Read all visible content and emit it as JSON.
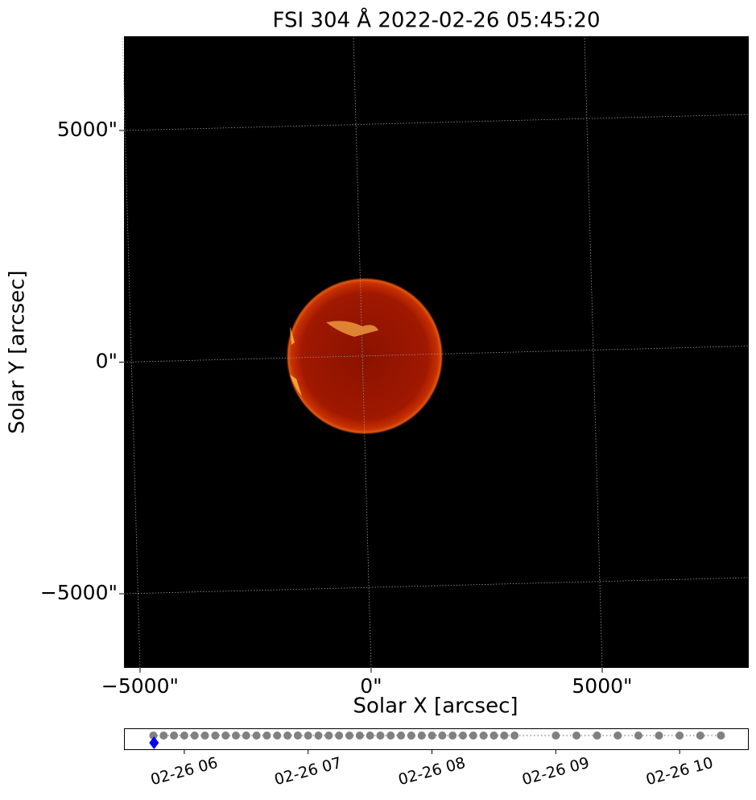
{
  "chart_data": [
    {
      "type": "image",
      "title": "FSI 304 Å 2022-02-26 05:45:20",
      "xlabel": "Solar X [arcsec]",
      "ylabel": "Solar Y [arcsec]",
      "xlim": [
        -5348,
        8171
      ],
      "ylim": [
        -6600,
        7035
      ],
      "xticks": [
        {
          "value": -5000,
          "label": "−5000\""
        },
        {
          "value": 0,
          "label": "0\""
        },
        {
          "value": 5000,
          "label": "5000\""
        }
      ],
      "yticks": [
        {
          "value": -5000,
          "label": "−5000\""
        },
        {
          "value": 0,
          "label": "0\""
        },
        {
          "value": 5000,
          "label": "5000\""
        }
      ],
      "grid": true
    },
    {
      "type": "timeline",
      "color": "#808080",
      "x": [
        5.75,
        5.8333,
        5.9167,
        6,
        6.0833,
        6.1667,
        6.25,
        6.3333,
        6.4167,
        6.5,
        6.5833,
        6.6667,
        6.75,
        6.8333,
        6.9167,
        7,
        7.0833,
        7.1667,
        7.25,
        7.3333,
        7.4167,
        7.5,
        7.5833,
        7.6667,
        7.75,
        7.8333,
        7.9167,
        8,
        8.0833,
        8.1667,
        8.25,
        8.3333,
        8.4167,
        8.5,
        8.5833,
        8.6667,
        9,
        9.1667,
        9.3333,
        9.5,
        9.6667,
        9.8333,
        10,
        10.1667,
        10.3333
      ],
      "current": {
        "x": 5.7556,
        "color": "#0000ff"
      },
      "xlim": [
        5.513,
        10.558
      ],
      "xticks": [
        {
          "value": 6,
          "label": "02-26 06"
        },
        {
          "value": 7,
          "label": "02-26 07"
        },
        {
          "value": 8,
          "label": "02-26 08"
        },
        {
          "value": 9,
          "label": "02-26 09"
        },
        {
          "value": 10,
          "label": "02-26 10"
        }
      ]
    }
  ]
}
